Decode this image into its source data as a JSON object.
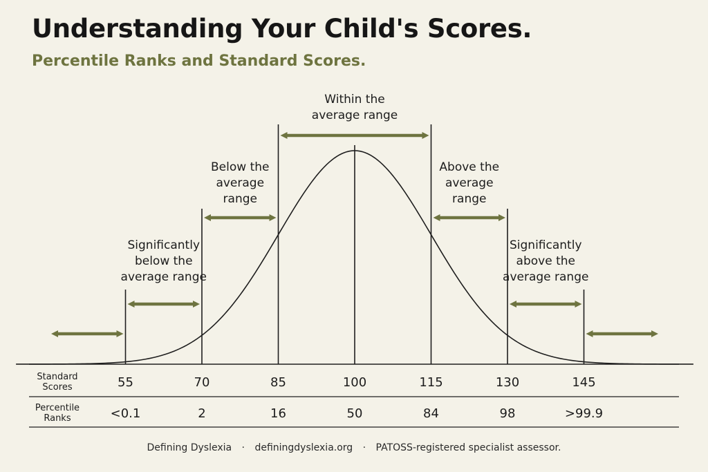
{
  "title": "Understanding Your Child's Scores.",
  "subtitle": "Percentile Ranks and Standard Scores.",
  "colors": {
    "accent": "#6e7440",
    "line": "#1e1e1e",
    "background": "#f4f2e8"
  },
  "chart_data": {
    "type": "area",
    "distribution": "normal",
    "mean": 100,
    "sd": 15,
    "xlim": [
      40,
      160
    ],
    "divider_scores": [
      55,
      70,
      85,
      100,
      115,
      130,
      145
    ],
    "standard_scores_label": [
      "Standard",
      "Scores"
    ],
    "percentile_ranks_label": [
      "Percentile",
      "Ranks"
    ],
    "standard_scores": [
      "55",
      "70",
      "85",
      "100",
      "115",
      "130",
      "145"
    ],
    "percentile_ranks": [
      "<0.1",
      "2",
      "16",
      "50",
      "84",
      "98",
      ">99.9"
    ],
    "ranges": [
      {
        "name": "significantly-below",
        "from": 40,
        "to": 55,
        "label": []
      },
      {
        "name": "significantly-below-label",
        "from": 55,
        "to": 70,
        "label": [
          "Significantly",
          "below the",
          "average range"
        ]
      },
      {
        "name": "below-average",
        "from": 70,
        "to": 85,
        "label": [
          "Below the",
          "average",
          "range"
        ]
      },
      {
        "name": "within-average",
        "from": 85,
        "to": 115,
        "label": [
          "Within the",
          "average range"
        ]
      },
      {
        "name": "above-average",
        "from": 115,
        "to": 130,
        "label": [
          "Above the",
          "average",
          "range"
        ]
      },
      {
        "name": "significantly-above-label",
        "from": 130,
        "to": 145,
        "label": [
          "Significantly",
          "above the",
          "average range"
        ]
      },
      {
        "name": "significantly-above",
        "from": 145,
        "to": 160,
        "label": []
      }
    ]
  },
  "footer": {
    "org": "Defining Dyslexia",
    "site": "definingdyslexia.org",
    "credential": "PATOSS-registered specialist assessor.",
    "separator": "·"
  }
}
